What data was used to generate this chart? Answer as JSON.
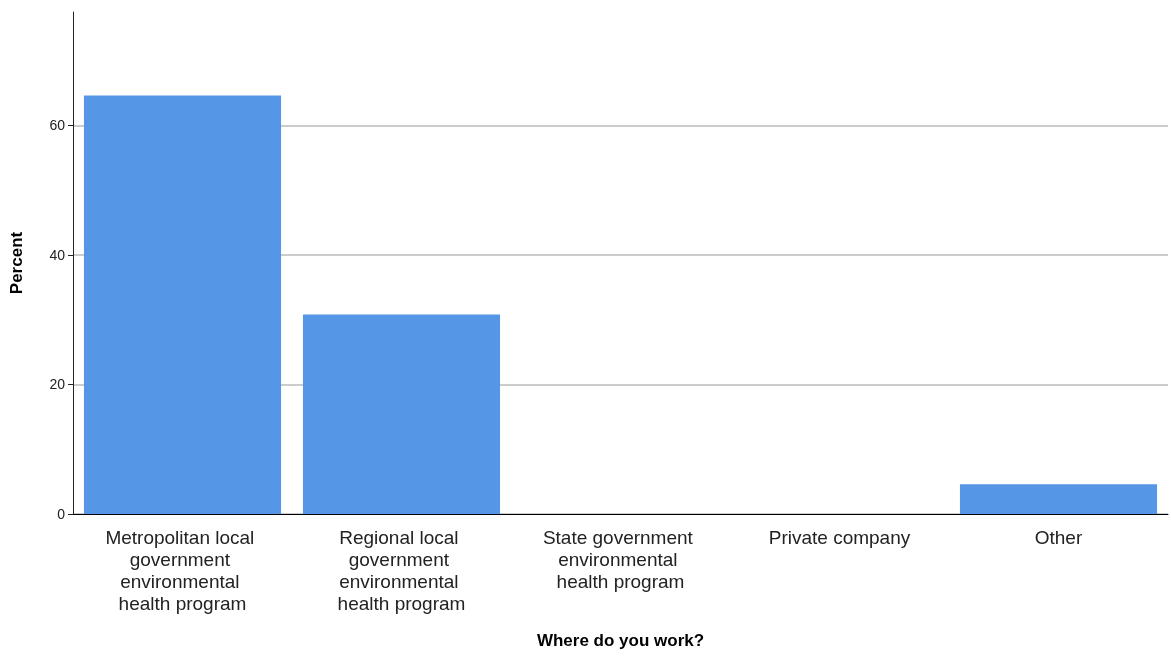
{
  "chart_data": {
    "type": "bar",
    "xlabel": "Where do you work?",
    "ylabel": "Percent",
    "categories": [
      "Metropolitan local government environmental health program",
      "Regional local government environmental health program",
      "State government environmental health program",
      "Private company",
      "Other"
    ],
    "values": [
      64.6,
      30.8,
      0,
      0,
      4.6
    ],
    "color": "#5596e6",
    "ylim": [
      0,
      77.5
    ],
    "yticks": [
      0,
      20,
      40,
      60
    ],
    "grid": "y"
  }
}
